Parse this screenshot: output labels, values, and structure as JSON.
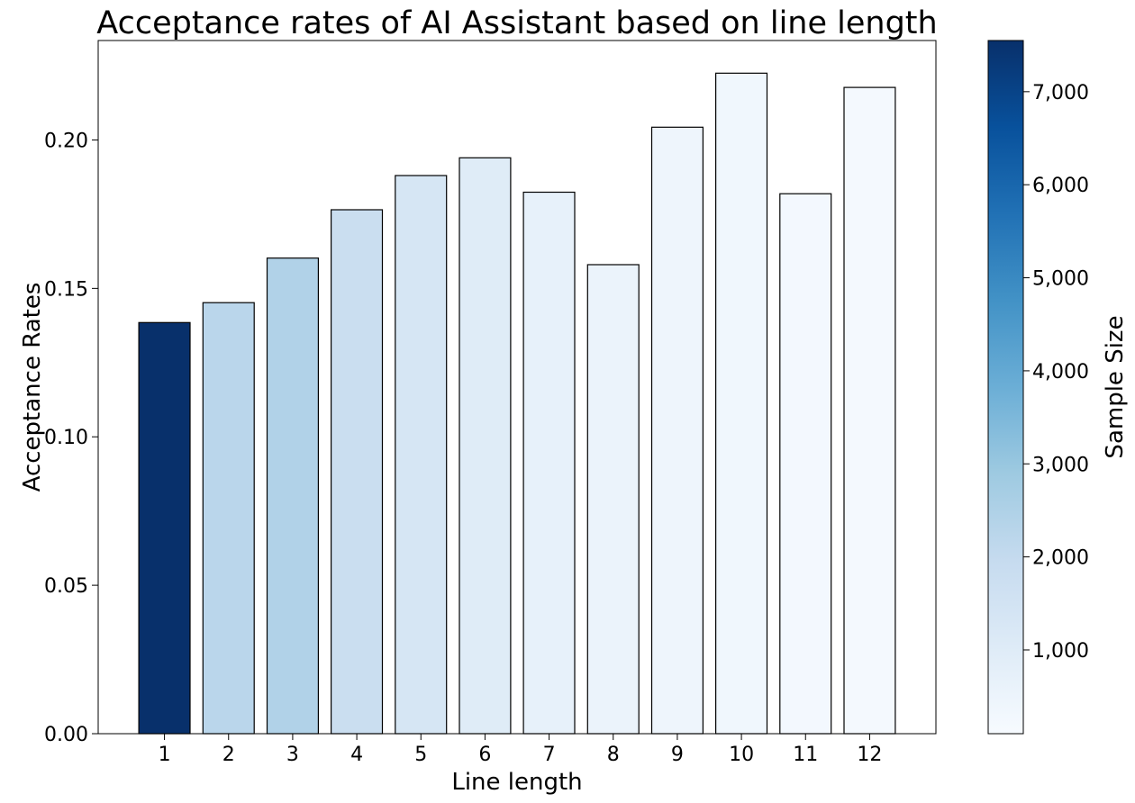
{
  "chart_data": {
    "type": "bar",
    "title": "Acceptance rates of AI Assistant based on line length",
    "xlabel": "Line length",
    "ylabel": "Acceptance Rates",
    "categories": [
      "1",
      "2",
      "3",
      "4",
      "5",
      "6",
      "7",
      "8",
      "9",
      "10",
      "11",
      "12"
    ],
    "values": [
      0.1385,
      0.1452,
      0.1602,
      0.1765,
      0.188,
      0.194,
      0.1824,
      0.158,
      0.2043,
      0.2225,
      0.1819,
      0.2177
    ],
    "sample_sizes": [
      7550,
      2250,
      2450,
      1800,
      1350,
      1000,
      700,
      550,
      450,
      350,
      250,
      200
    ],
    "ylim": [
      0,
      0.2335
    ],
    "yticks": [
      0.0,
      0.05,
      0.1,
      0.15,
      0.2
    ],
    "ytick_labels": [
      "0.00",
      "0.05",
      "0.10",
      "0.15",
      "0.20"
    ],
    "grid": false,
    "bar_edge_color": "#000000",
    "colorbar": {
      "label": "Sample Size",
      "colormap": "Blues",
      "range": [
        100,
        7550
      ],
      "ticks": [
        1000,
        2000,
        3000,
        4000,
        5000,
        6000,
        7000
      ],
      "tick_labels": [
        "1,000",
        "2,000",
        "3,000",
        "4,000",
        "5,000",
        "6,000",
        "7,000"
      ],
      "stops": [
        "#f7fbff",
        "#deebf7",
        "#c6dbef",
        "#9ecae1",
        "#6baed6",
        "#4292c6",
        "#2171b5",
        "#08519c",
        "#08306b"
      ]
    }
  }
}
